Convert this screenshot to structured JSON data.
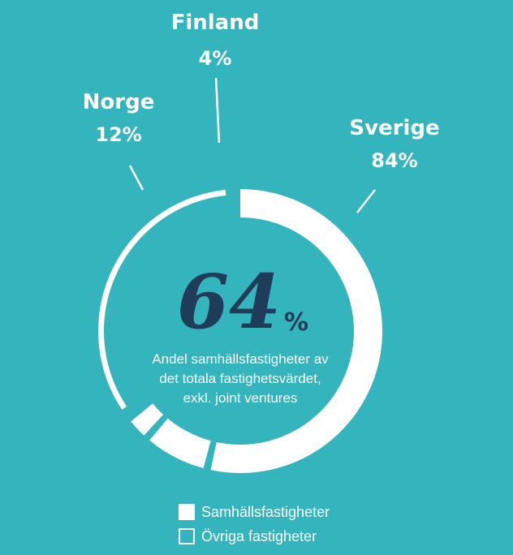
{
  "chart_data": {
    "type": "pie",
    "countries": [
      {
        "name": "Sverige",
        "percent_label": "84%",
        "value": 84
      },
      {
        "name": "Norge",
        "percent_label": "12%",
        "value": 12
      },
      {
        "name": "Finland",
        "percent_label": "4%",
        "value": 4
      }
    ],
    "share": {
      "number": "64",
      "unit": "%",
      "value": 64
    },
    "description_lines": [
      "Andel samhällsfastigheter av",
      "det totala fastighetsvärdet,",
      "exkl. joint ventures"
    ],
    "legend": {
      "filled": "Samhällsfastigheter",
      "outlined": "Övriga fastigheter"
    },
    "colors": {
      "background": "#34b4bd",
      "segment": "#ffffff",
      "number": "#1f3d5a"
    }
  }
}
